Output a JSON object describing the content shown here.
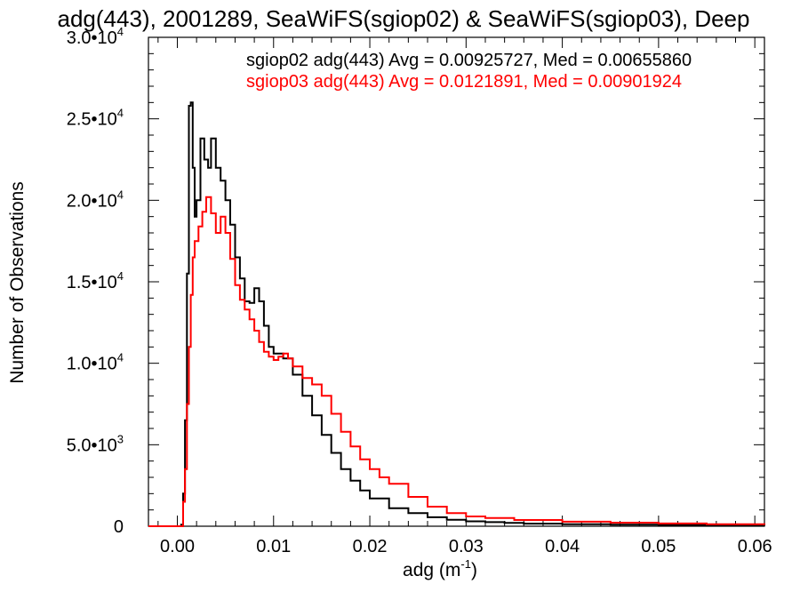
{
  "chart_data": {
    "type": "line",
    "title": "adg(443), 2001289, SeaWiFS(sgiop02) & SeaWiFS(sgiop03), Deep",
    "xlabel": "adg (m",
    "xlabel_sup": "-1",
    "xlabel_close": ")",
    "ylabel": "Number of Observations",
    "xlim": [
      -0.003,
      0.061
    ],
    "ylim": [
      0,
      30000
    ],
    "x_ticks": [
      {
        "value": 0.0,
        "label": "0.00"
      },
      {
        "value": 0.01,
        "label": "0.01"
      },
      {
        "value": 0.02,
        "label": "0.02"
      },
      {
        "value": 0.03,
        "label": "0.03"
      },
      {
        "value": 0.04,
        "label": "0.04"
      },
      {
        "value": 0.05,
        "label": "0.05"
      },
      {
        "value": 0.06,
        "label": "0.06"
      }
    ],
    "y_ticks": [
      {
        "value": 0,
        "mant": "0",
        "exp": ""
      },
      {
        "value": 5000,
        "mant": "5.0•10",
        "exp": "3"
      },
      {
        "value": 10000,
        "mant": "1.0•10",
        "exp": "4"
      },
      {
        "value": 15000,
        "mant": "1.5•10",
        "exp": "4"
      },
      {
        "value": 20000,
        "mant": "2.0•10",
        "exp": "4"
      },
      {
        "value": 25000,
        "mant": "2.5•10",
        "exp": "4"
      },
      {
        "value": 30000,
        "mant": "3.0•10",
        "exp": "4"
      }
    ],
    "series": [
      {
        "name": "sgiop02 adg(443) Avg = 0.00925727, Med = 0.00655860",
        "color": "#000000",
        "points": [
          [
            -0.003,
            0
          ],
          [
            0.0002,
            0
          ],
          [
            0.0004,
            100
          ],
          [
            0.0006,
            2000
          ],
          [
            0.0008,
            6500
          ],
          [
            0.001,
            15500
          ],
          [
            0.0012,
            25800
          ],
          [
            0.0014,
            26000
          ],
          [
            0.0016,
            22000
          ],
          [
            0.0018,
            19000
          ],
          [
            0.002,
            20000
          ],
          [
            0.0024,
            23800
          ],
          [
            0.0028,
            22500
          ],
          [
            0.0032,
            22000
          ],
          [
            0.0035,
            23800
          ],
          [
            0.004,
            22000
          ],
          [
            0.0045,
            21200
          ],
          [
            0.005,
            20000
          ],
          [
            0.0055,
            18500
          ],
          [
            0.006,
            16500
          ],
          [
            0.0065,
            15200
          ],
          [
            0.007,
            13800
          ],
          [
            0.0075,
            13700
          ],
          [
            0.008,
            14600
          ],
          [
            0.0085,
            13800
          ],
          [
            0.009,
            12300
          ],
          [
            0.0095,
            11000
          ],
          [
            0.01,
            10600
          ],
          [
            0.011,
            10300
          ],
          [
            0.012,
            9300
          ],
          [
            0.013,
            8000
          ],
          [
            0.014,
            6800
          ],
          [
            0.015,
            5600
          ],
          [
            0.016,
            4500
          ],
          [
            0.017,
            3500
          ],
          [
            0.018,
            2800
          ],
          [
            0.019,
            2200
          ],
          [
            0.02,
            1700
          ],
          [
            0.022,
            1100
          ],
          [
            0.024,
            800
          ],
          [
            0.026,
            550
          ],
          [
            0.028,
            400
          ],
          [
            0.03,
            300
          ],
          [
            0.032,
            250
          ],
          [
            0.034,
            200
          ],
          [
            0.036,
            160
          ],
          [
            0.04,
            120
          ],
          [
            0.045,
            100
          ],
          [
            0.05,
            80
          ],
          [
            0.055,
            60
          ],
          [
            0.061,
            40
          ]
        ]
      },
      {
        "name": "sgiop03 adg(443) Avg = 0.0121891, Med = 0.00901924",
        "color": "#ff0000",
        "points": [
          [
            -0.003,
            0
          ],
          [
            0.0004,
            0
          ],
          [
            0.0006,
            1500
          ],
          [
            0.0008,
            3500
          ],
          [
            0.001,
            7500
          ],
          [
            0.0012,
            11000
          ],
          [
            0.0014,
            14200
          ],
          [
            0.0016,
            16500
          ],
          [
            0.0018,
            17500
          ],
          [
            0.0022,
            18400
          ],
          [
            0.0026,
            19300
          ],
          [
            0.003,
            20200
          ],
          [
            0.0035,
            19200
          ],
          [
            0.004,
            18000
          ],
          [
            0.0045,
            19000
          ],
          [
            0.005,
            18000
          ],
          [
            0.0055,
            16400
          ],
          [
            0.006,
            14800
          ],
          [
            0.0065,
            13900
          ],
          [
            0.007,
            13300
          ],
          [
            0.0075,
            12700
          ],
          [
            0.008,
            12000
          ],
          [
            0.0085,
            11300
          ],
          [
            0.009,
            10700
          ],
          [
            0.0095,
            10400
          ],
          [
            0.01,
            10200
          ],
          [
            0.0105,
            10400
          ],
          [
            0.011,
            10600
          ],
          [
            0.0115,
            10300
          ],
          [
            0.012,
            9800
          ],
          [
            0.013,
            9100
          ],
          [
            0.014,
            8700
          ],
          [
            0.015,
            8000
          ],
          [
            0.016,
            6900
          ],
          [
            0.017,
            5800
          ],
          [
            0.018,
            4900
          ],
          [
            0.019,
            4100
          ],
          [
            0.02,
            3500
          ],
          [
            0.021,
            3000
          ],
          [
            0.022,
            2600
          ],
          [
            0.024,
            1800
          ],
          [
            0.026,
            1200
          ],
          [
            0.028,
            800
          ],
          [
            0.03,
            600
          ],
          [
            0.032,
            500
          ],
          [
            0.035,
            380
          ],
          [
            0.04,
            280
          ],
          [
            0.045,
            220
          ],
          [
            0.05,
            170
          ],
          [
            0.055,
            120
          ],
          [
            0.061,
            90
          ]
        ]
      }
    ],
    "legend_placement": "top-right",
    "grid": false
  }
}
